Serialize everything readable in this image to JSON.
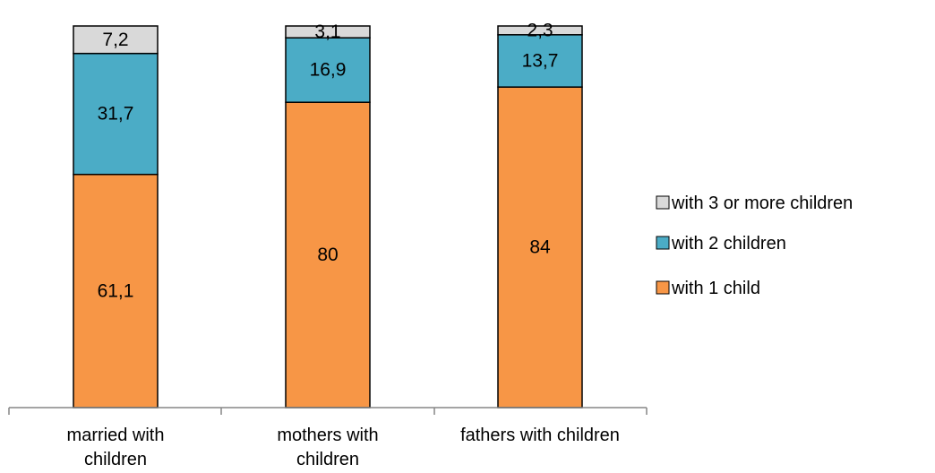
{
  "chart_data": {
    "type": "bar",
    "stacked": true,
    "title": "",
    "xlabel": "",
    "ylabel": "",
    "ylim": [
      0,
      100
    ],
    "grid": false,
    "legend_position": "right",
    "categories": [
      [
        "married  with",
        "children"
      ],
      [
        "mothers with",
        "children"
      ],
      [
        "fathers with children"
      ]
    ],
    "series": [
      {
        "name": "with 1 child",
        "color": "#F79646",
        "values": [
          61.1,
          80,
          84
        ],
        "labels": [
          "61,1",
          "80",
          "84"
        ]
      },
      {
        "name": "with 2 children",
        "color": "#4BACC6",
        "values": [
          31.7,
          16.9,
          13.7
        ],
        "labels": [
          "31,7",
          "16,9",
          "13,7"
        ]
      },
      {
        "name": "with 3 or more children",
        "color": "#D9D9D9",
        "values": [
          7.2,
          3.1,
          2.3
        ],
        "labels": [
          "7,2",
          "3,1",
          "2,3"
        ]
      }
    ],
    "legend_order": [
      2,
      1,
      0
    ]
  }
}
